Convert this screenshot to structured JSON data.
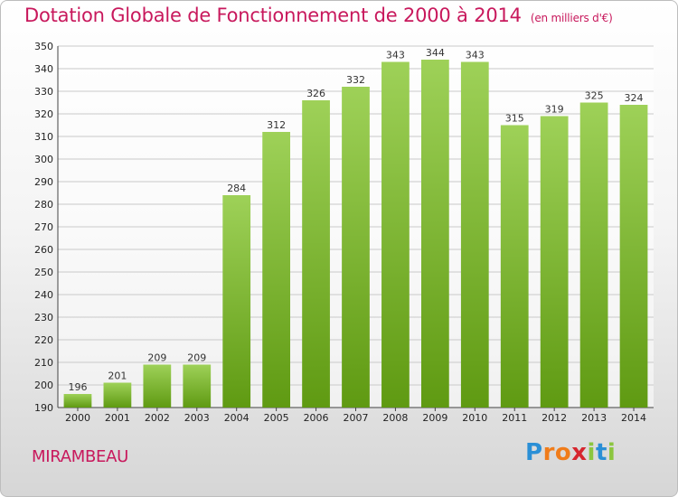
{
  "header": {
    "title": "Dotation Globale de Fonctionnement de 2000 à 2014",
    "unit": "(en milliers d'€)"
  },
  "footer": {
    "commune": "MIRAMBEAU",
    "brand": "Proxiti",
    "brand_letters": [
      {
        "ch": "P",
        "color": "#2a8fd6"
      },
      {
        "ch": "r",
        "color": "#f07c1a"
      },
      {
        "ch": "o",
        "color": "#f07c1a"
      },
      {
        "ch": "x",
        "color": "#d6262e"
      },
      {
        "ch": "i",
        "color": "#8cc63f"
      },
      {
        "ch": "t",
        "color": "#2a8fd6"
      },
      {
        "ch": "i",
        "color": "#8cc63f"
      }
    ]
  },
  "colors": {
    "bar_top": "#9ed158",
    "bar_bottom": "#5f9a12",
    "grid": "#c9c9c9",
    "title": "#c8185c"
  },
  "chart_data": {
    "type": "bar",
    "title": "Dotation Globale de Fonctionnement de 2000 à 2014",
    "categories": [
      "2000",
      "2001",
      "2002",
      "2003",
      "2004",
      "2005",
      "2006",
      "2007",
      "2008",
      "2009",
      "2010",
      "2011",
      "2012",
      "2013",
      "2014"
    ],
    "values": [
      196,
      201,
      209,
      209,
      284,
      312,
      326,
      332,
      343,
      344,
      343,
      315,
      319,
      325,
      324
    ],
    "ylim": [
      190,
      350
    ],
    "yticks": [
      190,
      200,
      210,
      220,
      230,
      240,
      250,
      260,
      270,
      280,
      290,
      300,
      310,
      320,
      330,
      340,
      350
    ],
    "grid": true,
    "xlabel": "",
    "ylabel": ""
  }
}
